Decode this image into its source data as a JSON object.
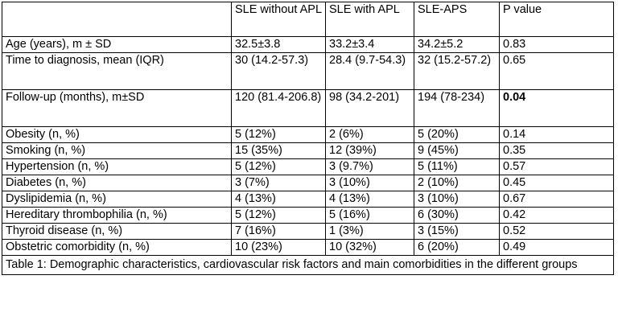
{
  "table": {
    "headers": [
      "",
      "SLE without APL",
      "SLE with APL",
      "SLE-APS",
      "P value"
    ],
    "rows": [
      {
        "label": "Age (years), m ± SD",
        "a": "32.5±3.8",
        "b": "33.2±3.4",
        "c": "34.2±5.2",
        "p": "0.83"
      },
      {
        "label": "Time to diagnosis, mean (IQR)",
        "a": "30 (14.2-57.3)",
        "b": "28.4 (9.7-54.3)",
        "c": "32 (15.2-57.2)",
        "p": "0.65"
      },
      {
        "label": "Follow-up (months), m±SD",
        "a": "120 (81.4-206.8)",
        "b": "98 (34.2-201)",
        "c": "194 (78-234)",
        "p": "0.04"
      },
      {
        "label": "Obesity (n, %)",
        "a": "5 (12%)",
        "b": "2 (6%)",
        "c": "5 (20%)",
        "p": "0.14"
      },
      {
        "label": "Smoking (n, %)",
        "a": "15 (35%)",
        "b": "12 (39%)",
        "c": "9 (45%)",
        "p": "0.35"
      },
      {
        "label": "Hypertension (n, %)",
        "a": "5 (12%)",
        "b": "3 (9.7%)",
        "c": "5 (11%)",
        "p": "0.57"
      },
      {
        "label": "Diabetes (n, %)",
        "a": "3 (7%)",
        "b": "3 (10%)",
        "c": "2 (10%)",
        "p": "0.45"
      },
      {
        "label": "Dyslipidemia (n, %)",
        "a": "4 (13%)",
        "b": "4 (13%)",
        "c": "3 (10%)",
        "p": "0.67"
      },
      {
        "label": "Hereditary thrombophilia (n, %)",
        "a": "5 (12%)",
        "b": "5 (16%)",
        "c": "6 (30%)",
        "p": "0.42"
      },
      {
        "label": "Thyroid disease (n, %)",
        "a": "7 (16%)",
        "b": "1 (3%)",
        "c": "3 (15%)",
        "p": "0.52"
      },
      {
        "label": "Obstetric comorbidity (n, %)",
        "a": "10 (23%)",
        "b": "10 (32%)",
        "c": "6 (20%)",
        "p": "0.49"
      }
    ],
    "caption": "Table 1: Demographic characteristics, cardiovascular risk factors and main comorbidities in the different groups"
  }
}
